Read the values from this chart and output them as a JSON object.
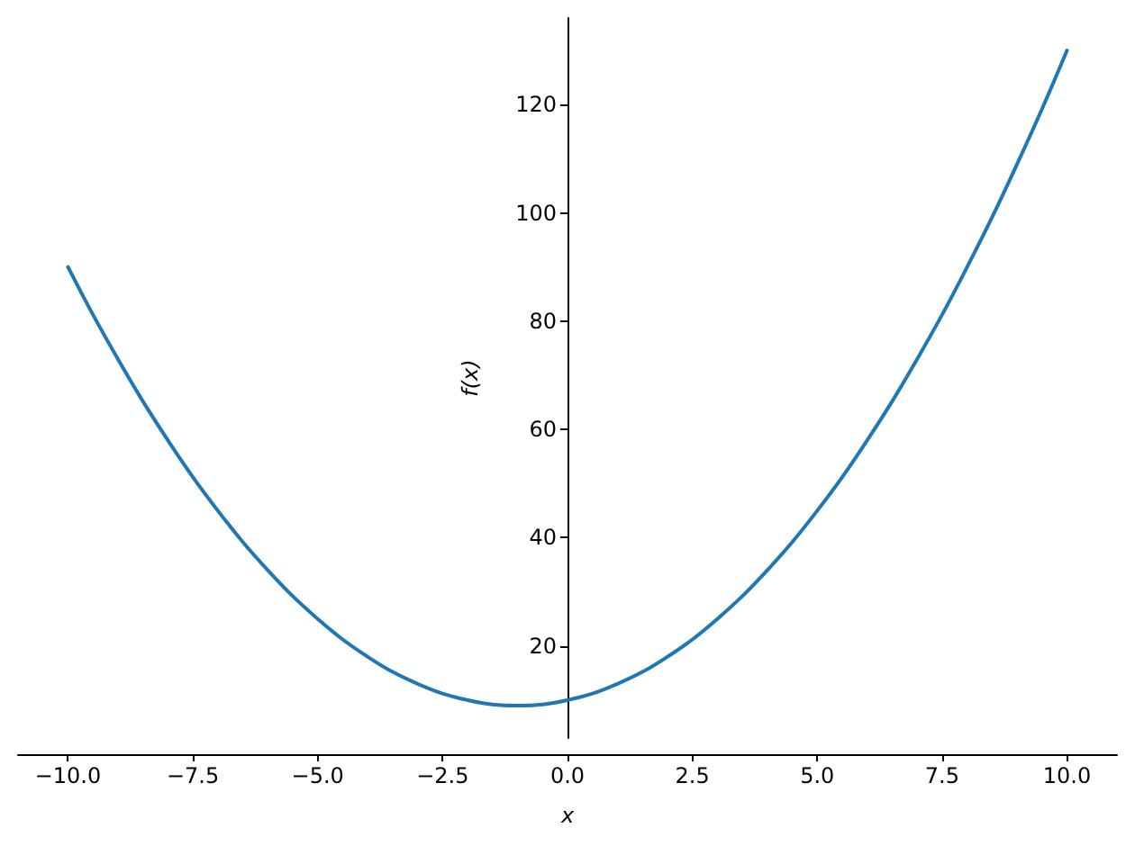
{
  "chart_data": {
    "type": "line",
    "xlabel": "x",
    "ylabel": "f(x)",
    "x": [
      -10,
      -9.5,
      -9,
      -8.5,
      -8,
      -7.5,
      -7,
      -6.5,
      -6,
      -5.5,
      -5,
      -4.5,
      -4,
      -3.5,
      -3,
      -2.5,
      -2,
      -1.5,
      -1,
      -0.5,
      0,
      0.5,
      1,
      1.5,
      2,
      2.5,
      3,
      3.5,
      4,
      4.5,
      5,
      5.5,
      6,
      6.5,
      7,
      7.5,
      8,
      8.5,
      9,
      9.5,
      10
    ],
    "series": [
      {
        "color": "#1f77b4",
        "values": [
          90,
          81.2,
          73,
          65.2,
          58,
          51.2,
          45,
          39.2,
          34,
          29.2,
          25,
          21.2,
          18,
          15.2,
          13,
          11.2,
          10,
          9.2,
          9,
          9.2,
          10,
          11.2,
          13,
          15.2,
          18,
          21.2,
          25,
          29.2,
          34,
          39.2,
          45,
          51.2,
          58,
          65.2,
          73,
          81.2,
          90,
          99.2,
          109,
          119.2,
          130
        ]
      }
    ],
    "xlim": [
      -11,
      11
    ],
    "xticks": [
      {
        "value": -10,
        "label": "−10.0"
      },
      {
        "value": -7.5,
        "label": "−7.5"
      },
      {
        "value": -5,
        "label": "−5.0"
      },
      {
        "value": -2.5,
        "label": "−2.5"
      },
      {
        "value": 0,
        "label": "0.0"
      },
      {
        "value": 2.5,
        "label": "2.5"
      },
      {
        "value": 5,
        "label": "5.0"
      },
      {
        "value": 7.5,
        "label": "7.5"
      },
      {
        "value": 10,
        "label": "10.0"
      }
    ],
    "ylim": [
      3,
      136
    ],
    "yticks": [
      20,
      40,
      60,
      80,
      100,
      120
    ],
    "grid": false,
    "marker": "none",
    "line_style": "solid"
  }
}
